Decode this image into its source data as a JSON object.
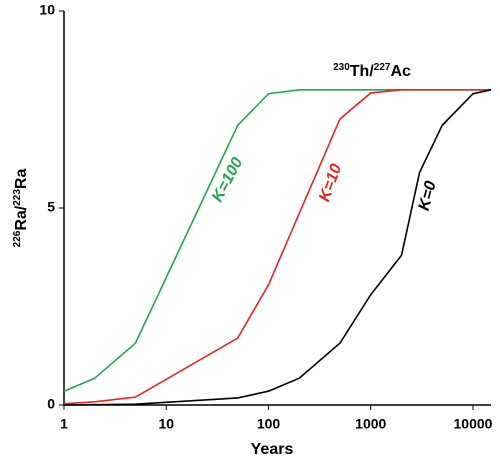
{
  "chart_data": {
    "type": "line",
    "xlabel": "Years",
    "ylabel_parts": [
      "226",
      "Ra/",
      "223",
      "Ra"
    ],
    "annotation_parts": [
      "230",
      "Th/",
      "227",
      "Ac"
    ],
    "log_x": true,
    "grid": false,
    "xlim": [
      1,
      15000
    ],
    "xticks": [
      1,
      10,
      100,
      1000,
      10000
    ],
    "ylim": [
      0,
      10
    ],
    "yticks": [
      0,
      5,
      10
    ],
    "series": [
      {
        "name": "K=100",
        "color": "#22a84a",
        "x": [
          1,
          2,
          5,
          50,
          100,
          200,
          15000
        ],
        "values": [
          0.35,
          0.68,
          1.57,
          7.1,
          7.9,
          8.0,
          8.0
        ]
      },
      {
        "name": "K=10",
        "color": "#e8251f",
        "x": [
          1,
          2,
          5,
          50,
          100,
          500,
          1000,
          2000,
          15000
        ],
        "values": [
          0.03,
          0.08,
          0.2,
          1.7,
          3.05,
          7.26,
          7.92,
          8.0,
          8.0
        ]
      },
      {
        "name": "K=0",
        "color": "#000000",
        "x": [
          1,
          5,
          50,
          100,
          200,
          500,
          1000,
          2000,
          3000,
          5000,
          10000,
          15000
        ],
        "values": [
          0,
          0.02,
          0.18,
          0.35,
          0.68,
          1.57,
          2.8,
          3.8,
          5.9,
          7.1,
          7.9,
          8.0
        ]
      }
    ]
  }
}
